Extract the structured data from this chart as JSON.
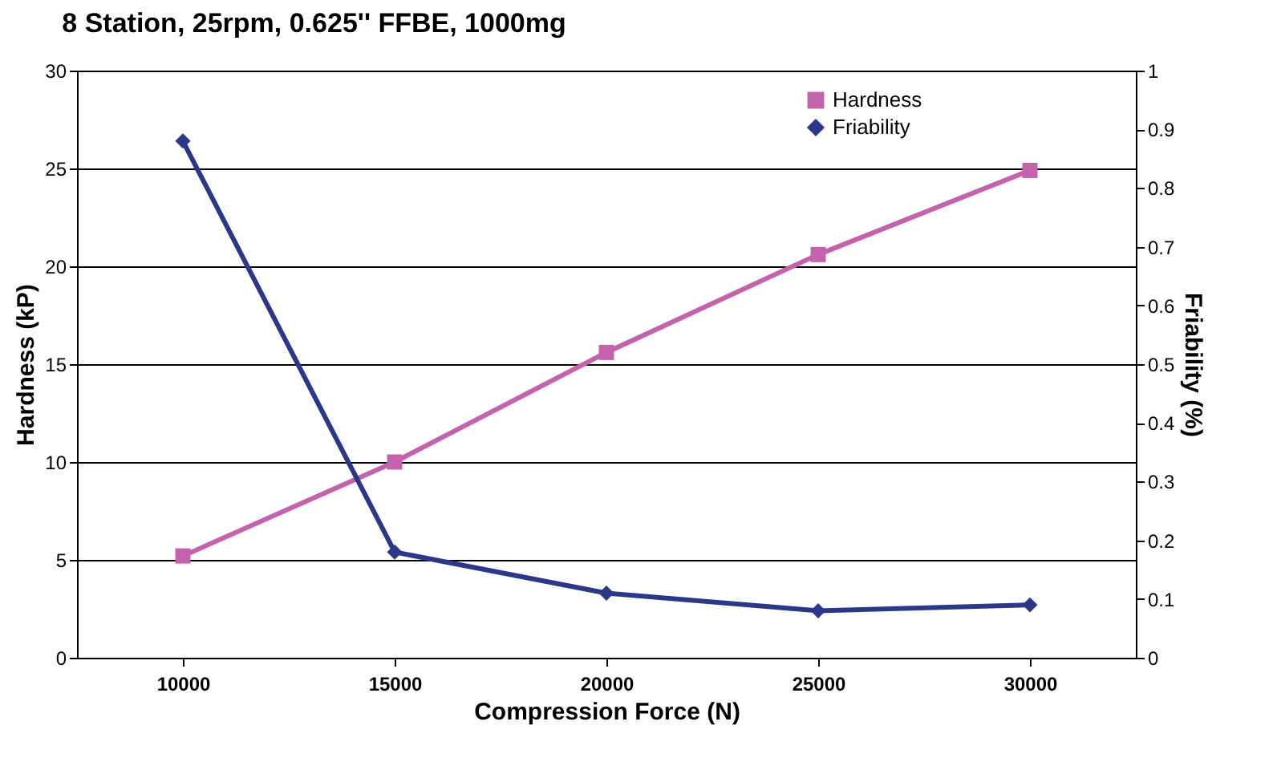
{
  "chart_data": {
    "type": "line",
    "title": "8 Station, 25rpm, 0.625'' FFBE, 1000mg",
    "xlabel": "Compression Force (N)",
    "ylabel": "Hardness (kP)",
    "y2label": "Friability (%)",
    "categories": [
      "10000",
      "15000",
      "20000",
      "25000",
      "30000"
    ],
    "series": [
      {
        "name": "Hardness",
        "color": "#c462ae",
        "marker": "square",
        "values": [
          5.2,
          10.0,
          15.6,
          20.6,
          24.9
        ]
      },
      {
        "name": "Friability",
        "color": "#2b3788",
        "marker": "diamond",
        "axis": "y2",
        "values": [
          0.88,
          0.18,
          0.11,
          0.08,
          0.09
        ]
      }
    ],
    "ylim": [
      0,
      30
    ],
    "yticks": [
      0,
      5,
      10,
      15,
      20,
      25,
      30
    ],
    "y2lim": [
      0,
      1
    ],
    "y2ticks": [
      0,
      0.1,
      0.2,
      0.3,
      0.4,
      0.5,
      0.6,
      0.7,
      0.8,
      0.9,
      1
    ],
    "grid": "y",
    "legend": "top right",
    "line_style": "solid"
  }
}
